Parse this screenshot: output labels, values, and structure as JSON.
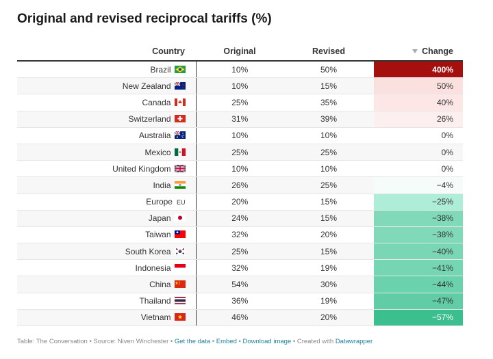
{
  "title": "Original and revised reciprocal tariffs (%)",
  "columns": {
    "country": "Country",
    "original": "Original",
    "revised": "Revised",
    "change": "Change"
  },
  "colors": {
    "max_positive": "#a50f0d",
    "light_positive": "#fbe0e0",
    "neutral": "#ffffff",
    "max_negative": "#3cbf8f"
  },
  "rows": [
    {
      "country": "Brazil",
      "flag": "brazil-flag",
      "original": "10%",
      "revised": "50%",
      "change": "400%"
    },
    {
      "country": "New Zealand",
      "flag": "new-zealand-flag",
      "original": "10%",
      "revised": "15%",
      "change": "50%"
    },
    {
      "country": "Canada",
      "flag": "canada-flag",
      "original": "25%",
      "revised": "35%",
      "change": "40%"
    },
    {
      "country": "Switzerland",
      "flag": "switzerland-flag",
      "original": "31%",
      "revised": "39%",
      "change": "26%"
    },
    {
      "country": "Australia",
      "flag": "australia-flag",
      "original": "10%",
      "revised": "10%",
      "change": "0%"
    },
    {
      "country": "Mexico",
      "flag": "mexico-flag",
      "original": "25%",
      "revised": "25%",
      "change": "0%"
    },
    {
      "country": "United Kingdom",
      "flag": "united-kingdom-flag",
      "original": "10%",
      "revised": "10%",
      "change": "0%"
    },
    {
      "country": "India",
      "flag": "india-flag",
      "original": "26%",
      "revised": "25%",
      "change": "−4%"
    },
    {
      "country": "Europe",
      "flag": "eu-flag",
      "flag_text": "EU",
      "original": "20%",
      "revised": "15%",
      "change": "−25%"
    },
    {
      "country": "Japan",
      "flag": "japan-flag",
      "original": "24%",
      "revised": "15%",
      "change": "−38%"
    },
    {
      "country": "Taiwan",
      "flag": "taiwan-flag",
      "original": "32%",
      "revised": "20%",
      "change": "−38%"
    },
    {
      "country": "South Korea",
      "flag": "south-korea-flag",
      "original": "25%",
      "revised": "15%",
      "change": "−40%"
    },
    {
      "country": "Indonesia",
      "flag": "indonesia-flag",
      "original": "32%",
      "revised": "19%",
      "change": "−41%"
    },
    {
      "country": "China",
      "flag": "china-flag",
      "original": "54%",
      "revised": "30%",
      "change": "−44%"
    },
    {
      "country": "Thailand",
      "flag": "thailand-flag",
      "original": "36%",
      "revised": "19%",
      "change": "−47%"
    },
    {
      "country": "Vietnam",
      "flag": "vietnam-flag",
      "original": "46%",
      "revised": "20%",
      "change": "−57%"
    }
  ],
  "chart_data": {
    "type": "table",
    "title": "Original and revised reciprocal tariffs (%)",
    "columns": [
      "Country",
      "Original",
      "Revised",
      "Change"
    ],
    "sorted_by": "Change",
    "sort_order": "descending",
    "categories": [
      "Brazil",
      "New Zealand",
      "Canada",
      "Switzerland",
      "Australia",
      "Mexico",
      "United Kingdom",
      "India",
      "Europe",
      "Japan",
      "Taiwan",
      "South Korea",
      "Indonesia",
      "China",
      "Thailand",
      "Vietnam"
    ],
    "series": [
      {
        "name": "Original",
        "values": [
          10,
          10,
          25,
          31,
          10,
          25,
          10,
          26,
          20,
          24,
          32,
          25,
          32,
          54,
          36,
          46
        ]
      },
      {
        "name": "Revised",
        "values": [
          50,
          15,
          35,
          39,
          10,
          25,
          10,
          25,
          15,
          15,
          20,
          15,
          19,
          30,
          19,
          20
        ]
      },
      {
        "name": "Change",
        "values": [
          400,
          50,
          40,
          26,
          0,
          0,
          0,
          -4,
          -25,
          -38,
          -38,
          -40,
          -41,
          -44,
          -47,
          -57
        ]
      }
    ]
  },
  "footer": {
    "source_text": "Table: The Conversation • Source: Niven Winchester • ",
    "get_data": "Get the data",
    "sep1": " • ",
    "embed": "Embed",
    "sep2": " • ",
    "download": "Download image",
    "created": " • Created with ",
    "datawrapper": "Datawrapper"
  }
}
